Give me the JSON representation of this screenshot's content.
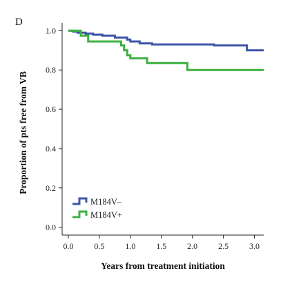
{
  "panel_label": "D",
  "chart_data": {
    "type": "line",
    "step": true,
    "xlabel": "Years from treatment initiation",
    "ylabel": "Proportion of pts free from VB",
    "xlim": [
      -0.1,
      3.15
    ],
    "ylim": [
      -0.04,
      1.04
    ],
    "xticks": [
      0.0,
      0.5,
      1.0,
      1.5,
      2.0,
      2.5,
      3.0
    ],
    "xtick_labels": [
      "0.0",
      "0.5",
      "1.0",
      "1.5",
      "2.0",
      "2.5",
      "3.0"
    ],
    "yticks": [
      0.0,
      0.2,
      0.4,
      0.6,
      0.8,
      1.0
    ],
    "ytick_labels": [
      "0.0",
      "0.2",
      "0.4",
      "0.6",
      "0.8",
      "1.0"
    ],
    "grid": false,
    "legend": "bottom-left",
    "series": [
      {
        "name": "M184V–",
        "color": "#3c55a5",
        "x": [
          0.0,
          0.08,
          0.15,
          0.28,
          0.4,
          0.55,
          0.75,
          0.95,
          1.0,
          1.15,
          1.35,
          1.85,
          2.35,
          2.88,
          3.15
        ],
        "y": [
          1.0,
          0.995,
          0.99,
          0.985,
          0.98,
          0.975,
          0.965,
          0.955,
          0.945,
          0.935,
          0.93,
          0.93,
          0.925,
          0.9,
          0.9
        ]
      },
      {
        "name": "M184V+",
        "color": "#3cb03f",
        "x": [
          0.0,
          0.2,
          0.32,
          0.85,
          0.9,
          0.95,
          1.0,
          1.27,
          1.92,
          3.15
        ],
        "y": [
          1.0,
          0.975,
          0.945,
          0.925,
          0.9,
          0.875,
          0.86,
          0.835,
          0.8,
          0.8
        ]
      }
    ]
  }
}
